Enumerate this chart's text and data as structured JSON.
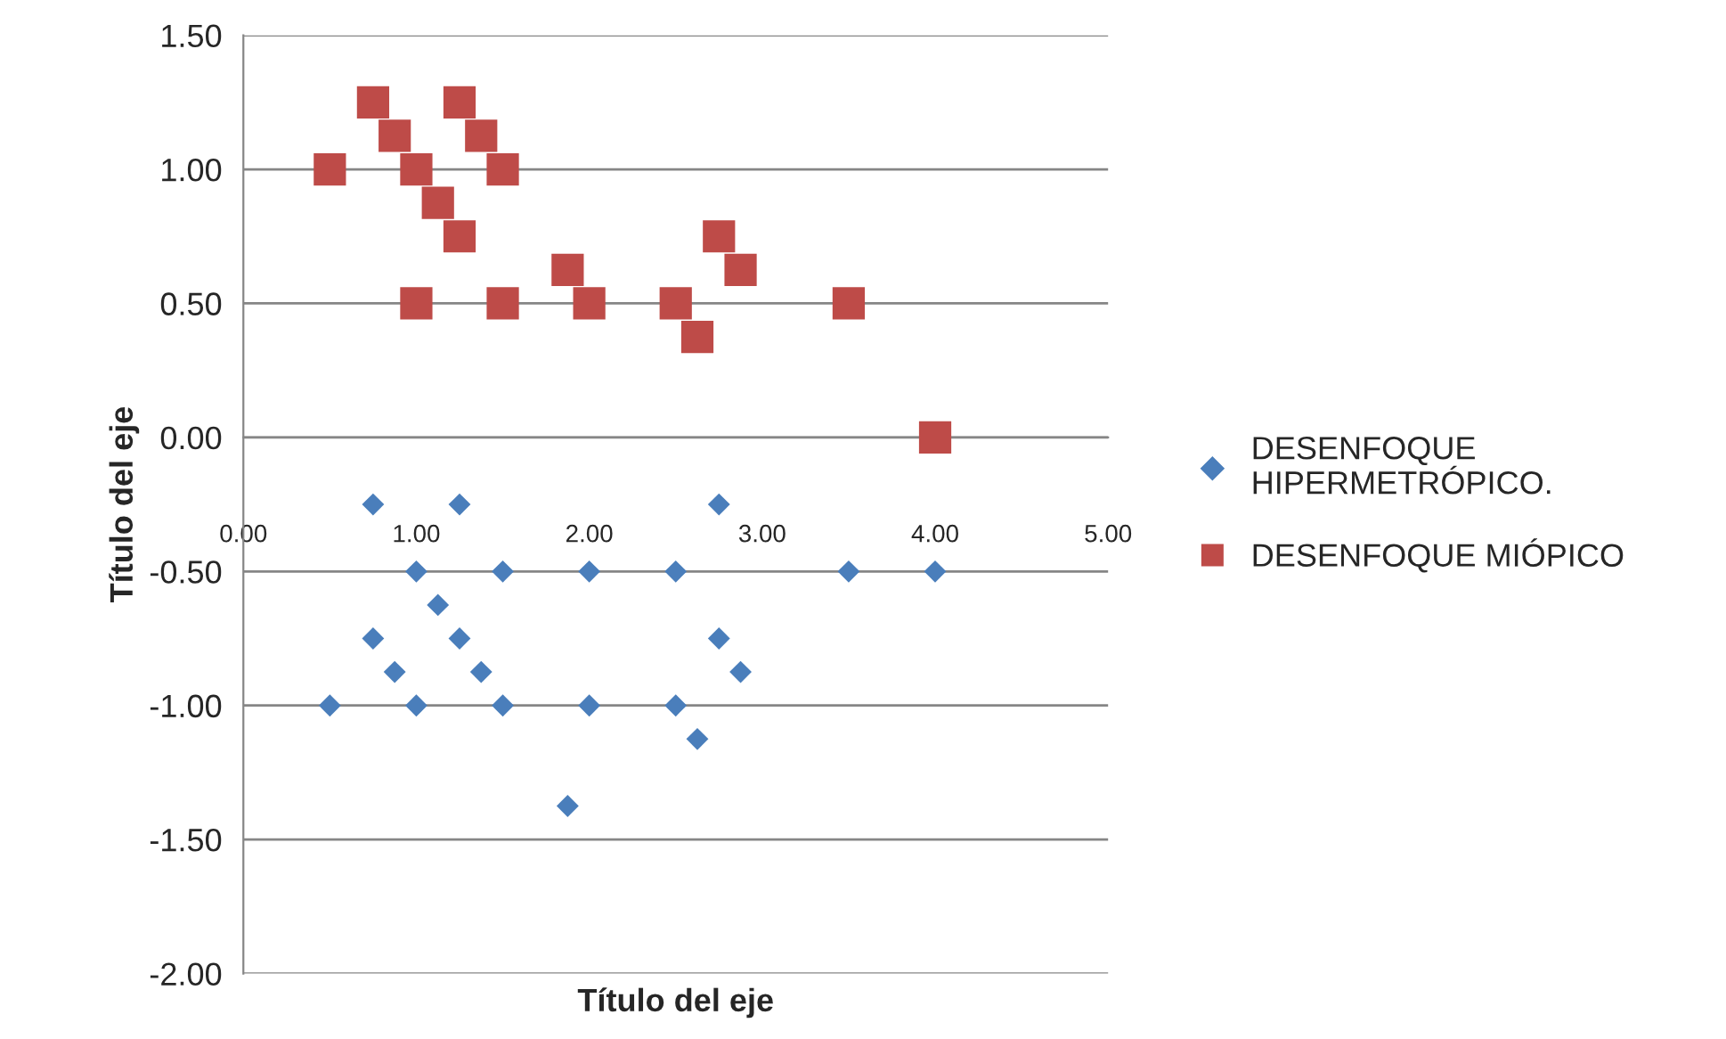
{
  "chart_data": {
    "type": "scatter",
    "xlabel": "Título del eje",
    "ylabel": "Título del eje",
    "xlim": [
      0,
      5
    ],
    "ylim": [
      -2,
      1.5
    ],
    "xticks": [
      {
        "value": 0,
        "label": "0.00"
      },
      {
        "value": 1,
        "label": "1.00"
      },
      {
        "value": 2,
        "label": "2.00"
      },
      {
        "value": 3,
        "label": "3.00"
      },
      {
        "value": 4,
        "label": "4.00"
      },
      {
        "value": 5,
        "label": "5.00"
      }
    ],
    "yticks": [
      {
        "value": -2,
        "label": "-2.00"
      },
      {
        "value": -1.5,
        "label": "-1.50"
      },
      {
        "value": -1,
        "label": "-1.00"
      },
      {
        "value": -0.5,
        "label": "-0.50"
      },
      {
        "value": 0,
        "label": "0.00"
      },
      {
        "value": 0.5,
        "label": "0.50"
      },
      {
        "value": 1,
        "label": "1.00"
      },
      {
        "value": 1.5,
        "label": "1.50"
      }
    ],
    "grid": "y",
    "legend": "right",
    "series": [
      {
        "name": "DESENFOQUE HIPERMETRÓPICO.",
        "color": "#4a7ebb",
        "marker": "diamond",
        "x": [
          0.75,
          1.25,
          2.75,
          1.0,
          1.5,
          2.0,
          2.5,
          3.5,
          4.0,
          1.125,
          0.75,
          1.25,
          2.75,
          0.875,
          1.375,
          2.875,
          0.5,
          1.0,
          1.5,
          2.0,
          2.5,
          2.625,
          1.875
        ],
        "values": [
          -0.25,
          -0.25,
          -0.25,
          -0.5,
          -0.5,
          -0.5,
          -0.5,
          -0.5,
          -0.5,
          -0.625,
          -0.75,
          -0.75,
          -0.75,
          -0.875,
          -0.875,
          -0.875,
          -1.0,
          -1.0,
          -1.0,
          -1.0,
          -1.0,
          -1.125,
          -1.375
        ]
      },
      {
        "name": "DESENFOQUE MIÓPICO",
        "color": "#be4b48",
        "marker": "square",
        "x": [
          0.5,
          0.75,
          0.875,
          1.0,
          1.0,
          1.125,
          1.25,
          1.25,
          1.375,
          1.5,
          1.5,
          1.875,
          2.0,
          2.5,
          2.625,
          2.75,
          2.875,
          3.5,
          4.0
        ],
        "values": [
          1.0,
          1.25,
          1.125,
          1.0,
          0.5,
          0.875,
          0.75,
          1.25,
          1.125,
          1.0,
          0.5,
          0.625,
          0.5,
          0.5,
          0.375,
          0.75,
          0.625,
          0.5,
          0.0
        ]
      }
    ]
  }
}
